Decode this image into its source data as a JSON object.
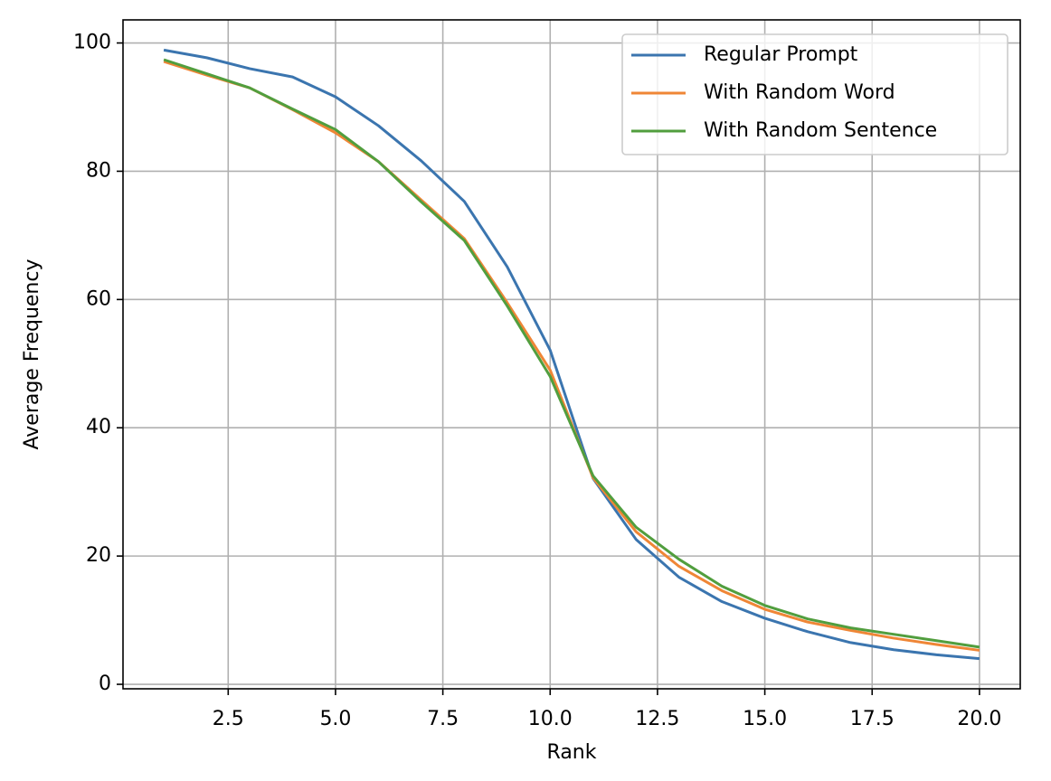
{
  "chart_data": {
    "type": "line",
    "x": [
      1,
      2,
      3,
      4,
      5,
      6,
      7,
      8,
      9,
      10,
      11,
      12,
      13,
      14,
      15,
      16,
      17,
      18,
      19,
      20
    ],
    "series": [
      {
        "name": "Regular Prompt",
        "color": "#3b75af",
        "values": [
          98.9,
          97.7,
          96,
          94.7,
          91.6,
          87.1,
          81.6,
          75.3,
          65.1,
          52.1,
          32.1,
          22.6,
          16.7,
          12.9,
          10.3,
          8.2,
          6.5,
          5.4,
          4.6,
          4
        ]
      },
      {
        "name": "With Random Word",
        "color": "#ef8636",
        "values": [
          97.1,
          95,
          93,
          89.6,
          86,
          81.5,
          75.5,
          69.5,
          59.5,
          49,
          32.2,
          23.8,
          18.4,
          14.6,
          11.7,
          9.7,
          8.4,
          7.2,
          6.2,
          5.3
        ]
      },
      {
        "name": "With Random Sentence",
        "color": "#519e3e",
        "values": [
          97.4,
          95.2,
          93,
          89.7,
          86.5,
          81.5,
          75.2,
          69.2,
          59,
          48,
          32.5,
          24.5,
          19.5,
          15.3,
          12.3,
          10.2,
          8.8,
          7.8,
          6.8,
          5.8
        ]
      }
    ],
    "xlabel": "Rank",
    "ylabel": "Average Frequency",
    "xlim": [
      0.05,
      20.95
    ],
    "xticks": [
      2.5,
      {
        "value": 5,
        "label": "5.0"
      },
      7.5,
      {
        "value": 10,
        "label": "10.0"
      },
      12.5,
      {
        "value": 15,
        "label": "15.0"
      },
      17.5,
      {
        "value": 20,
        "label": "20.0"
      }
    ],
    "ylim": [
      -0.7,
      103.6
    ],
    "yticks": [
      0,
      20,
      40,
      60,
      80,
      100
    ],
    "grid": true,
    "legend": "upper right"
  }
}
